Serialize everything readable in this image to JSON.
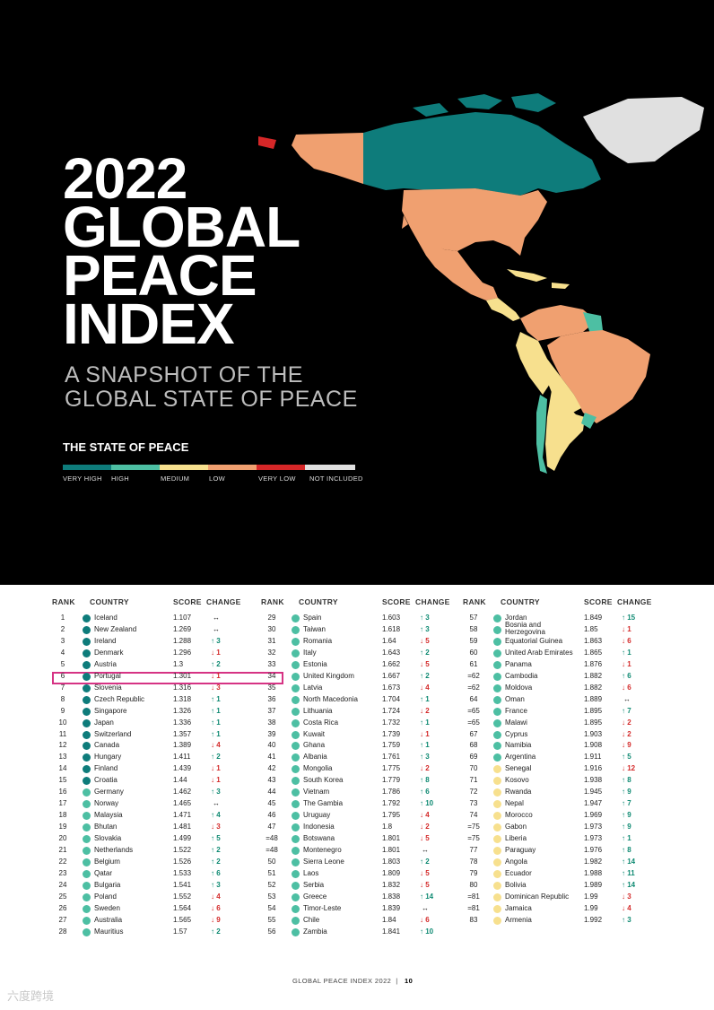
{
  "hero": {
    "title_lines": [
      "2022",
      "GLOBAL",
      "PEACE",
      "INDEX"
    ],
    "subtitle_lines": [
      "A SNAPSHOT OF THE",
      "GLOBAL STATE OF PEACE"
    ],
    "legend_title": "THE STATE OF PEACE",
    "legend": [
      {
        "label": "VERY HIGH",
        "color": "#0e7c7b"
      },
      {
        "label": "HIGH",
        "color": "#4dbfa3"
      },
      {
        "label": "MEDIUM",
        "color": "#f7e08e"
      },
      {
        "label": "LOW",
        "color": "#f0a070"
      },
      {
        "label": "VERY LOW",
        "color": "#d62728"
      },
      {
        "label": "NOT INCLUDED",
        "color": "#e0e0e0"
      }
    ]
  },
  "table": {
    "headers": {
      "rank": "RANK",
      "country": "COUNTRY",
      "score": "SCORE",
      "change": "CHANGE"
    },
    "columns": [
      [
        {
          "rank": "1",
          "country": "Iceland",
          "score": "1.107",
          "change": "↔",
          "dir": "same",
          "level": "very-high"
        },
        {
          "rank": "2",
          "country": "New Zealand",
          "score": "1.269",
          "change": "↔",
          "dir": "same",
          "level": "very-high"
        },
        {
          "rank": "3",
          "country": "Ireland",
          "score": "1.288",
          "change": "↑ 3",
          "dir": "up",
          "level": "very-high"
        },
        {
          "rank": "4",
          "country": "Denmark",
          "score": "1.296",
          "change": "↓ 1",
          "dir": "down",
          "level": "very-high"
        },
        {
          "rank": "5",
          "country": "Austria",
          "score": "1.3",
          "change": "↑ 2",
          "dir": "up",
          "level": "very-high"
        },
        {
          "rank": "6",
          "country": "Portugal",
          "score": "1.301",
          "change": "↓ 1",
          "dir": "down",
          "level": "very-high"
        },
        {
          "rank": "7",
          "country": "Slovenia",
          "score": "1.316",
          "change": "↓ 3",
          "dir": "down",
          "level": "very-high"
        },
        {
          "rank": "8",
          "country": "Czech Republic",
          "score": "1.318",
          "change": "↑ 1",
          "dir": "up",
          "level": "very-high"
        },
        {
          "rank": "9",
          "country": "Singapore",
          "score": "1.326",
          "change": "↑ 1",
          "dir": "up",
          "level": "very-high"
        },
        {
          "rank": "10",
          "country": "Japan",
          "score": "1.336",
          "change": "↑ 1",
          "dir": "up",
          "level": "very-high"
        },
        {
          "rank": "11",
          "country": "Switzerland",
          "score": "1.357",
          "change": "↑ 1",
          "dir": "up",
          "level": "very-high"
        },
        {
          "rank": "12",
          "country": "Canada",
          "score": "1.389",
          "change": "↓ 4",
          "dir": "down",
          "level": "very-high"
        },
        {
          "rank": "13",
          "country": "Hungary",
          "score": "1.411",
          "change": "↑ 2",
          "dir": "up",
          "level": "very-high"
        },
        {
          "rank": "14",
          "country": "Finland",
          "score": "1.439",
          "change": "↓ 1",
          "dir": "down",
          "level": "very-high"
        },
        {
          "rank": "15",
          "country": "Croatia",
          "score": "1.44",
          "change": "↓ 1",
          "dir": "down",
          "level": "very-high"
        },
        {
          "rank": "16",
          "country": "Germany",
          "score": "1.462",
          "change": "↑ 3",
          "dir": "up",
          "level": "high"
        },
        {
          "rank": "17",
          "country": "Norway",
          "score": "1.465",
          "change": "↔",
          "dir": "same",
          "level": "high"
        },
        {
          "rank": "18",
          "country": "Malaysia",
          "score": "1.471",
          "change": "↑ 4",
          "dir": "up",
          "level": "high"
        },
        {
          "rank": "19",
          "country": "Bhutan",
          "score": "1.481",
          "change": "↓ 3",
          "dir": "down",
          "level": "high"
        },
        {
          "rank": "20",
          "country": "Slovakia",
          "score": "1.499",
          "change": "↑ 5",
          "dir": "up",
          "level": "high"
        },
        {
          "rank": "21",
          "country": "Netherlands",
          "score": "1.522",
          "change": "↑ 2",
          "dir": "up",
          "level": "high"
        },
        {
          "rank": "22",
          "country": "Belgium",
          "score": "1.526",
          "change": "↑ 2",
          "dir": "up",
          "level": "high"
        },
        {
          "rank": "23",
          "country": "Qatar",
          "score": "1.533",
          "change": "↑ 6",
          "dir": "up",
          "level": "high"
        },
        {
          "rank": "24",
          "country": "Bulgaria",
          "score": "1.541",
          "change": "↑ 3",
          "dir": "up",
          "level": "high"
        },
        {
          "rank": "25",
          "country": "Poland",
          "score": "1.552",
          "change": "↓ 4",
          "dir": "down",
          "level": "high"
        },
        {
          "rank": "26",
          "country": "Sweden",
          "score": "1.564",
          "change": "↓ 6",
          "dir": "down",
          "level": "high"
        },
        {
          "rank": "27",
          "country": "Australia",
          "score": "1.565",
          "change": "↓ 9",
          "dir": "down",
          "level": "high"
        },
        {
          "rank": "28",
          "country": "Mauritius",
          "score": "1.57",
          "change": "↑ 2",
          "dir": "up",
          "level": "high"
        }
      ],
      [
        {
          "rank": "29",
          "country": "Spain",
          "score": "1.603",
          "change": "↑ 3",
          "dir": "up",
          "level": "high"
        },
        {
          "rank": "30",
          "country": "Taiwan",
          "score": "1.618",
          "change": "↑ 3",
          "dir": "up",
          "level": "high"
        },
        {
          "rank": "31",
          "country": "Romania",
          "score": "1.64",
          "change": "↓ 5",
          "dir": "down",
          "level": "high"
        },
        {
          "rank": "32",
          "country": "Italy",
          "score": "1.643",
          "change": "↑ 2",
          "dir": "up",
          "level": "high"
        },
        {
          "rank": "33",
          "country": "Estonia",
          "score": "1.662",
          "change": "↓ 5",
          "dir": "down",
          "level": "high"
        },
        {
          "rank": "34",
          "country": "United Kingdom",
          "score": "1.667",
          "change": "↑ 2",
          "dir": "up",
          "level": "high"
        },
        {
          "rank": "35",
          "country": "Latvia",
          "score": "1.673",
          "change": "↓ 4",
          "dir": "down",
          "level": "high"
        },
        {
          "rank": "36",
          "country": "North Macedonia",
          "score": "1.704",
          "change": "↑ 1",
          "dir": "up",
          "level": "high"
        },
        {
          "rank": "37",
          "country": "Lithuania",
          "score": "1.724",
          "change": "↓ 2",
          "dir": "down",
          "level": "high"
        },
        {
          "rank": "38",
          "country": "Costa Rica",
          "score": "1.732",
          "change": "↑ 1",
          "dir": "up",
          "level": "high"
        },
        {
          "rank": "39",
          "country": "Kuwait",
          "score": "1.739",
          "change": "↓ 1",
          "dir": "down",
          "level": "high"
        },
        {
          "rank": "40",
          "country": "Ghana",
          "score": "1.759",
          "change": "↑ 1",
          "dir": "up",
          "level": "high"
        },
        {
          "rank": "41",
          "country": "Albania",
          "score": "1.761",
          "change": "↑ 3",
          "dir": "up",
          "level": "high"
        },
        {
          "rank": "42",
          "country": "Mongolia",
          "score": "1.775",
          "change": "↓ 2",
          "dir": "down",
          "level": "high"
        },
        {
          "rank": "43",
          "country": "South Korea",
          "score": "1.779",
          "change": "↑ 8",
          "dir": "up",
          "level": "high"
        },
        {
          "rank": "44",
          "country": "Vietnam",
          "score": "1.786",
          "change": "↑ 6",
          "dir": "up",
          "level": "high"
        },
        {
          "rank": "45",
          "country": "The Gambia",
          "score": "1.792",
          "change": "↑ 10",
          "dir": "up",
          "level": "high"
        },
        {
          "rank": "46",
          "country": "Uruguay",
          "score": "1.795",
          "change": "↓ 4",
          "dir": "down",
          "level": "high"
        },
        {
          "rank": "47",
          "country": "Indonesia",
          "score": "1.8",
          "change": "↓ 2",
          "dir": "down",
          "level": "high"
        },
        {
          "rank": "=48",
          "country": "Botswana",
          "score": "1.801",
          "change": "↓ 5",
          "dir": "down",
          "level": "high"
        },
        {
          "rank": "=48",
          "country": "Montenegro",
          "score": "1.801",
          "change": "↔",
          "dir": "same",
          "level": "high"
        },
        {
          "rank": "50",
          "country": "Sierra Leone",
          "score": "1.803",
          "change": "↑ 2",
          "dir": "up",
          "level": "high"
        },
        {
          "rank": "51",
          "country": "Laos",
          "score": "1.809",
          "change": "↓ 5",
          "dir": "down",
          "level": "high"
        },
        {
          "rank": "52",
          "country": "Serbia",
          "score": "1.832",
          "change": "↓ 5",
          "dir": "down",
          "level": "high"
        },
        {
          "rank": "53",
          "country": "Greece",
          "score": "1.838",
          "change": "↑ 14",
          "dir": "up",
          "level": "high"
        },
        {
          "rank": "54",
          "country": "Timor-Leste",
          "score": "1.839",
          "change": "↔",
          "dir": "same",
          "level": "high"
        },
        {
          "rank": "55",
          "country": "Chile",
          "score": "1.84",
          "change": "↓ 6",
          "dir": "down",
          "level": "high"
        },
        {
          "rank": "56",
          "country": "Zambia",
          "score": "1.841",
          "change": "↑ 10",
          "dir": "up",
          "level": "high"
        }
      ],
      [
        {
          "rank": "57",
          "country": "Jordan",
          "score": "1.849",
          "change": "↑ 15",
          "dir": "up",
          "level": "high"
        },
        {
          "rank": "58",
          "country": "Bosnia and Herzegovina",
          "score": "1.85",
          "change": "↓ 1",
          "dir": "down",
          "level": "high"
        },
        {
          "rank": "59",
          "country": "Equatorial Guinea",
          "score": "1.863",
          "change": "↓ 6",
          "dir": "down",
          "level": "high"
        },
        {
          "rank": "60",
          "country": "United Arab Emirates",
          "score": "1.865",
          "change": "↑ 1",
          "dir": "up",
          "level": "high"
        },
        {
          "rank": "61",
          "country": "Panama",
          "score": "1.876",
          "change": "↓ 1",
          "dir": "down",
          "level": "high"
        },
        {
          "rank": "=62",
          "country": "Cambodia",
          "score": "1.882",
          "change": "↑ 6",
          "dir": "up",
          "level": "high"
        },
        {
          "rank": "=62",
          "country": "Moldova",
          "score": "1.882",
          "change": "↓ 6",
          "dir": "down",
          "level": "high"
        },
        {
          "rank": "64",
          "country": "Oman",
          "score": "1.889",
          "change": "↔",
          "dir": "same",
          "level": "high"
        },
        {
          "rank": "=65",
          "country": "France",
          "score": "1.895",
          "change": "↑ 7",
          "dir": "up",
          "level": "high"
        },
        {
          "rank": "=65",
          "country": "Malawi",
          "score": "1.895",
          "change": "↓ 2",
          "dir": "down",
          "level": "high"
        },
        {
          "rank": "67",
          "country": "Cyprus",
          "score": "1.903",
          "change": "↓ 2",
          "dir": "down",
          "level": "high"
        },
        {
          "rank": "68",
          "country": "Namibia",
          "score": "1.908",
          "change": "↓ 9",
          "dir": "down",
          "level": "high"
        },
        {
          "rank": "69",
          "country": "Argentina",
          "score": "1.911",
          "change": "↑ 5",
          "dir": "up",
          "level": "high"
        },
        {
          "rank": "70",
          "country": "Senegal",
          "score": "1.916",
          "change": "↓ 12",
          "dir": "down",
          "level": "medium"
        },
        {
          "rank": "71",
          "country": "Kosovo",
          "score": "1.938",
          "change": "↑ 8",
          "dir": "up",
          "level": "medium"
        },
        {
          "rank": "72",
          "country": "Rwanda",
          "score": "1.945",
          "change": "↑ 9",
          "dir": "up",
          "level": "medium"
        },
        {
          "rank": "73",
          "country": "Nepal",
          "score": "1.947",
          "change": "↑ 7",
          "dir": "up",
          "level": "medium"
        },
        {
          "rank": "74",
          "country": "Morocco",
          "score": "1.969",
          "change": "↑ 9",
          "dir": "up",
          "level": "medium"
        },
        {
          "rank": "=75",
          "country": "Gabon",
          "score": "1.973",
          "change": "↑ 9",
          "dir": "up",
          "level": "medium"
        },
        {
          "rank": "=75",
          "country": "Liberia",
          "score": "1.973",
          "change": "↑ 1",
          "dir": "up",
          "level": "medium"
        },
        {
          "rank": "77",
          "country": "Paraguay",
          "score": "1.976",
          "change": "↑ 8",
          "dir": "up",
          "level": "medium"
        },
        {
          "rank": "78",
          "country": "Angola",
          "score": "1.982",
          "change": "↑ 14",
          "dir": "up",
          "level": "medium"
        },
        {
          "rank": "79",
          "country": "Ecuador",
          "score": "1.988",
          "change": "↑ 11",
          "dir": "up",
          "level": "medium"
        },
        {
          "rank": "80",
          "country": "Bolivia",
          "score": "1.989",
          "change": "↑ 14",
          "dir": "up",
          "level": "medium"
        },
        {
          "rank": "=81",
          "country": "Dominican Republic",
          "score": "1.99",
          "change": "↓ 3",
          "dir": "down",
          "level": "medium"
        },
        {
          "rank": "=81",
          "country": "Jamaica",
          "score": "1.99",
          "change": "↓ 4",
          "dir": "down",
          "level": "medium"
        },
        {
          "rank": "83",
          "country": "Armenia",
          "score": "1.992",
          "change": "↑ 3",
          "dir": "up",
          "level": "medium"
        }
      ]
    ]
  },
  "footer": {
    "text": "GLOBAL PEACE INDEX 2022",
    "page": "10"
  },
  "watermark": "六度跨境",
  "colors": {
    "very-high": "#0e7c7b",
    "high": "#4dbfa3",
    "medium": "#f7e08e",
    "low": "#f0a070",
    "very-low": "#d62728",
    "not-included": "#e0e0e0",
    "up": "#0e8a72",
    "down": "#d42a2a",
    "same": "#222222",
    "highlight": "#d63384"
  }
}
